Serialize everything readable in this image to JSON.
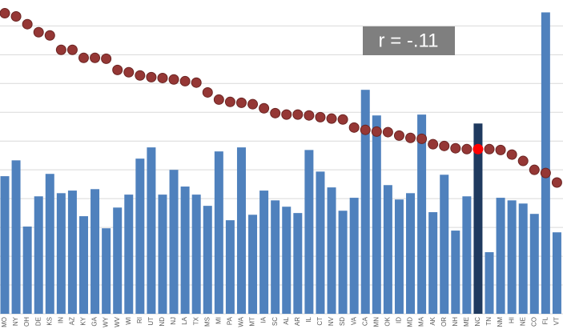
{
  "chart_data": {
    "type": "bar",
    "categories": [
      "MO",
      "NY",
      "OH",
      "DE",
      "KS",
      "IN",
      "AZ",
      "KY",
      "GA",
      "WY",
      "WV",
      "WI",
      "RI",
      "UT",
      "ND",
      "NJ",
      "LA",
      "TX",
      "MS",
      "MI",
      "PA",
      "WA",
      "MT",
      "IA",
      "SC",
      "AL",
      "AR",
      "IL",
      "CT",
      "NV",
      "SD",
      "VA",
      "CA",
      "MN",
      "OK",
      "ID",
      "MD",
      "MA",
      "AK",
      "OR",
      "NH",
      "ME",
      "NC",
      "TN",
      "NM",
      "HI",
      "NE",
      "CO",
      "FL",
      "VT"
    ],
    "series": [
      {
        "type": "bar",
        "color": "#4f81bd",
        "colors": [
          "#4f81bd",
          "#4f81bd",
          "#4f81bd",
          "#4f81bd",
          "#4f81bd",
          "#4f81bd",
          "#4f81bd",
          "#4f81bd",
          "#4f81bd",
          "#4f81bd",
          "#4f81bd",
          "#4f81bd",
          "#4f81bd",
          "#4f81bd",
          "#4f81bd",
          "#4f81bd",
          "#4f81bd",
          "#4f81bd",
          "#4f81bd",
          "#4f81bd",
          "#4f81bd",
          "#4f81bd",
          "#4f81bd",
          "#4f81bd",
          "#4f81bd",
          "#4f81bd",
          "#4f81bd",
          "#4f81bd",
          "#4f81bd",
          "#4f81bd",
          "#4f81bd",
          "#4f81bd",
          "#4f81bd",
          "#4f81bd",
          "#4f81bd",
          "#4f81bd",
          "#4f81bd",
          "#4f81bd",
          "#4f81bd",
          "#4f81bd",
          "#4f81bd",
          "#4f81bd",
          "#1f3a5f",
          "#4f81bd",
          "#4f81bd",
          "#4f81bd",
          "#4f81bd",
          "#4f81bd",
          "#4f81bd",
          "#4f81bd"
        ],
        "values": [
          4.78,
          5.33,
          3.03,
          4.08,
          4.86,
          4.19,
          4.28,
          3.39,
          4.33,
          2.97,
          3.69,
          4.14,
          5.39,
          5.78,
          4.14,
          5.0,
          4.42,
          4.14,
          3.75,
          5.64,
          3.25,
          5.78,
          3.44,
          4.28,
          3.94,
          3.72,
          3.5,
          5.69,
          4.94,
          4.39,
          3.58,
          4.03,
          7.78,
          6.89,
          4.47,
          3.97,
          4.19,
          6.92,
          3.53,
          4.83,
          2.89,
          4.08,
          6.61,
          2.14,
          4.03,
          3.94,
          3.83,
          3.47,
          10.47,
          2.83
        ]
      },
      {
        "type": "dot",
        "color": "#953735",
        "colors": [
          "#953735",
          "#953735",
          "#953735",
          "#953735",
          "#953735",
          "#953735",
          "#953735",
          "#953735",
          "#953735",
          "#953735",
          "#953735",
          "#953735",
          "#953735",
          "#953735",
          "#953735",
          "#953735",
          "#953735",
          "#953735",
          "#953735",
          "#953735",
          "#953735",
          "#953735",
          "#953735",
          "#953735",
          "#953735",
          "#953735",
          "#953735",
          "#953735",
          "#953735",
          "#953735",
          "#953735",
          "#953735",
          "#953735",
          "#953735",
          "#953735",
          "#953735",
          "#953735",
          "#953735",
          "#953735",
          "#953735",
          "#953735",
          "#953735",
          "#ff0000",
          "#953735",
          "#953735",
          "#953735",
          "#953735",
          "#953735",
          "#953735",
          "#953735"
        ],
        "values": [
          10.44,
          10.33,
          10.06,
          9.78,
          9.67,
          9.17,
          9.17,
          8.89,
          8.89,
          8.86,
          8.47,
          8.39,
          8.28,
          8.22,
          8.19,
          8.14,
          8.08,
          8.03,
          7.69,
          7.44,
          7.36,
          7.33,
          7.28,
          7.14,
          6.97,
          6.92,
          6.92,
          6.89,
          6.83,
          6.78,
          6.75,
          6.47,
          6.39,
          6.33,
          6.31,
          6.19,
          6.11,
          6.08,
          5.89,
          5.83,
          5.75,
          5.72,
          5.72,
          5.72,
          5.69,
          5.53,
          5.31,
          5.0,
          4.89,
          4.56
        ]
      }
    ],
    "annotation": "r = -.11",
    "ylim": [
      0,
      10.9
    ],
    "yticks": [
      0,
      1,
      2,
      3,
      4,
      5,
      6,
      7,
      8,
      9,
      10
    ],
    "grid": true
  }
}
